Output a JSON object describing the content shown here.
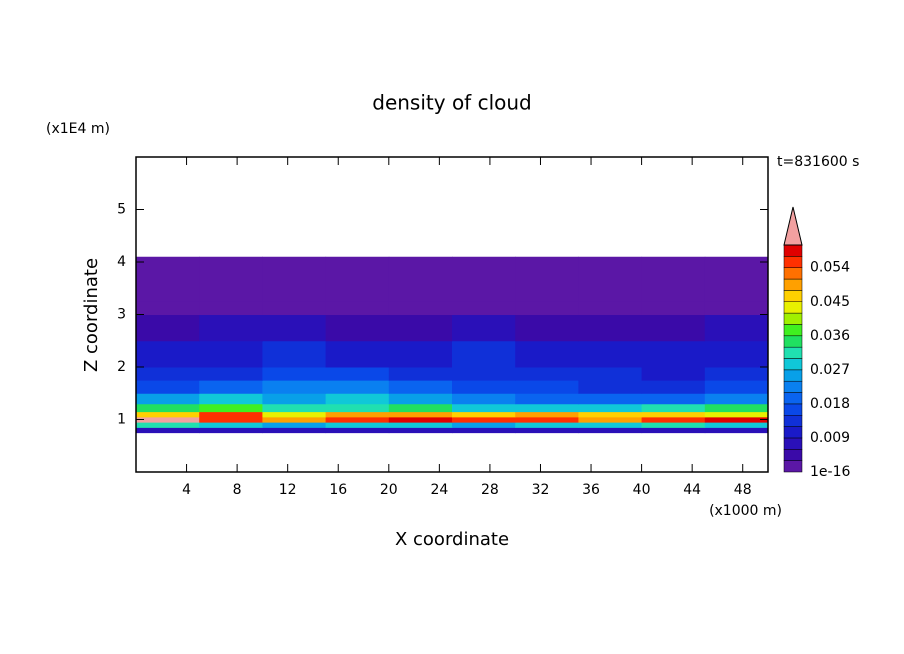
{
  "chart_data": {
    "type": "contour",
    "title": "density of cloud",
    "xlabel": "X coordinate",
    "ylabel": "Z coordinate",
    "xunit": "(x1000 m)",
    "yunit": "(x1E4 m)",
    "annotation": "t=831600 s",
    "xlim": [
      0,
      50
    ],
    "ylim": [
      0,
      6
    ],
    "xticks": [
      4,
      8,
      12,
      16,
      20,
      24,
      28,
      32,
      36,
      40,
      44,
      48
    ],
    "yticks": [
      1,
      2,
      3,
      4,
      5
    ],
    "x_edges": [
      0,
      5,
      10,
      15,
      20,
      25,
      30,
      35,
      40,
      45,
      50
    ],
    "y_edges": [
      0.75,
      0.85,
      0.95,
      1.05,
      1.15,
      1.3,
      1.5,
      1.75,
      2.0,
      2.5,
      3.0,
      3.25,
      4.1
    ],
    "z": [
      [
        0.009,
        0.009,
        0.009,
        0.009,
        0.009,
        0.009,
        0.009,
        0.009,
        0.009,
        0.009
      ],
      [
        0.033,
        0.03,
        0.027,
        0.03,
        0.03,
        0.027,
        0.03,
        0.03,
        0.033,
        0.03
      ],
      [
        0.061,
        0.054,
        0.051,
        0.054,
        0.057,
        0.054,
        0.054,
        0.051,
        0.054,
        0.057
      ],
      [
        0.048,
        0.054,
        0.045,
        0.051,
        0.051,
        0.048,
        0.051,
        0.048,
        0.048,
        0.045
      ],
      [
        0.036,
        0.039,
        0.033,
        0.033,
        0.036,
        0.03,
        0.03,
        0.03,
        0.033,
        0.036
      ],
      [
        0.027,
        0.03,
        0.027,
        0.03,
        0.027,
        0.024,
        0.021,
        0.021,
        0.021,
        0.024
      ],
      [
        0.018,
        0.021,
        0.024,
        0.024,
        0.021,
        0.018,
        0.018,
        0.015,
        0.015,
        0.018
      ],
      [
        0.015,
        0.015,
        0.018,
        0.018,
        0.015,
        0.015,
        0.015,
        0.015,
        0.012,
        0.015
      ],
      [
        0.012,
        0.012,
        0.015,
        0.012,
        0.012,
        0.015,
        0.012,
        0.012,
        0.012,
        0.012
      ],
      [
        0.006,
        0.009,
        0.009,
        0.006,
        0.006,
        0.009,
        0.006,
        0.006,
        0.006,
        0.009
      ],
      [
        0.003,
        0.003,
        0.003,
        0.003,
        0.003,
        0.003,
        0.003,
        0.003,
        0.003,
        0.003
      ],
      [
        0.001,
        0.001,
        0.001,
        0.001,
        0.001,
        0.001,
        0.001,
        0.001,
        0.001,
        0.001
      ]
    ],
    "clim": [
      1e-16,
      0.06
    ],
    "cticks": [
      1e-16,
      0.009,
      0.018,
      0.027,
      0.036,
      0.045,
      0.054
    ],
    "colors": [
      "#5b17a6",
      "#3a0aa8",
      "#2a10b8",
      "#1a1ac8",
      "#1030d8",
      "#0a48e8",
      "#0a64f0",
      "#0a80f0",
      "#08a0e8",
      "#10c8d8",
      "#20e0b0",
      "#20e060",
      "#40f020",
      "#a0f000",
      "#e8f000",
      "#ffd000",
      "#ffa000",
      "#ff7000",
      "#ff3000",
      "#e00000"
    ],
    "over_color": "#f2a0a0"
  }
}
